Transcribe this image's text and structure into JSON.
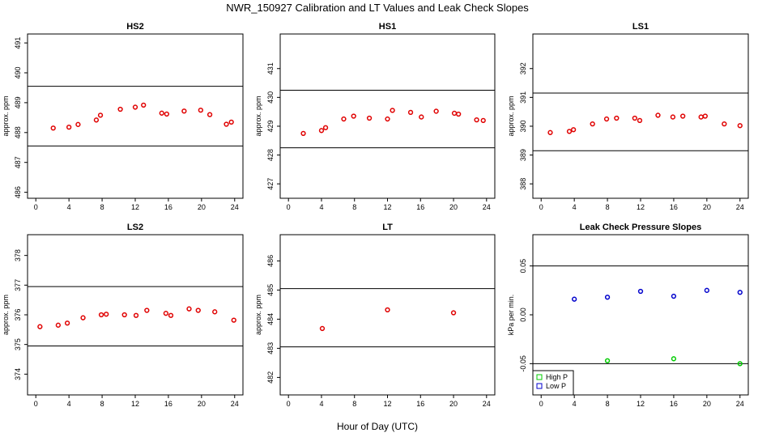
{
  "figure": {
    "title": "NWR_150927  Calibration and LT Values and Leak Check Slopes",
    "xlabel": "Hour of Day (UTC)"
  },
  "chart_data": [
    {
      "type": "scatter",
      "title": "HS2",
      "ylabel": "approx. ppm",
      "xlim": [
        -1,
        25
      ],
      "ylim": [
        485.8,
        491.3
      ],
      "xticks": [
        "0",
        "4",
        "8",
        "12",
        "16",
        "20",
        "24"
      ],
      "yticks": [
        "486",
        "487",
        "488",
        "489",
        "490",
        "491"
      ],
      "hlines": [
        489.55,
        487.55
      ],
      "series": [
        {
          "color": "#e00000",
          "marker": "circle",
          "x": [
            2.1,
            4.0,
            5.1,
            7.3,
            7.8,
            10.2,
            12.0,
            13.0,
            15.2,
            15.8,
            17.9,
            19.9,
            21.0,
            23.0,
            23.6
          ],
          "y": [
            488.15,
            488.18,
            488.27,
            488.42,
            488.58,
            488.78,
            488.85,
            488.92,
            488.65,
            488.62,
            488.72,
            488.75,
            488.6,
            488.28,
            488.35
          ]
        }
      ]
    },
    {
      "type": "scatter",
      "title": "HS1",
      "ylabel": "approx. ppm",
      "xlim": [
        -1,
        25
      ],
      "ylim": [
        426.5,
        432.2
      ],
      "xticks": [
        "0",
        "4",
        "8",
        "12",
        "16",
        "20",
        "24"
      ],
      "yticks": [
        "427",
        "428",
        "429",
        "430",
        "431"
      ],
      "hlines": [
        430.25,
        428.25
      ],
      "series": [
        {
          "color": "#e00000",
          "marker": "circle",
          "x": [
            1.8,
            4.0,
            4.5,
            6.7,
            7.9,
            9.8,
            12.0,
            12.6,
            14.8,
            16.1,
            17.9,
            20.1,
            20.6,
            22.8,
            23.6
          ],
          "y": [
            428.75,
            428.85,
            428.95,
            429.25,
            429.35,
            429.28,
            429.25,
            429.55,
            429.48,
            429.32,
            429.52,
            429.45,
            429.42,
            429.22,
            429.2
          ]
        }
      ]
    },
    {
      "type": "scatter",
      "title": "LS1",
      "ylabel": "approx. ppm",
      "xlim": [
        -1,
        25
      ],
      "ylim": [
        387.5,
        393.2
      ],
      "xticks": [
        "0",
        "4",
        "8",
        "12",
        "16",
        "20",
        "24"
      ],
      "yticks": [
        "388",
        "389",
        "390",
        "391",
        "392"
      ],
      "hlines": [
        391.15,
        389.15
      ],
      "series": [
        {
          "color": "#e00000",
          "marker": "circle",
          "x": [
            1.1,
            3.4,
            3.9,
            6.2,
            7.9,
            9.1,
            11.3,
            11.9,
            14.1,
            15.9,
            17.1,
            19.3,
            19.8,
            22.1,
            24.0
          ],
          "y": [
            389.78,
            389.82,
            389.88,
            390.08,
            390.25,
            390.28,
            390.28,
            390.2,
            390.38,
            390.32,
            390.35,
            390.32,
            390.35,
            390.08,
            390.02
          ]
        }
      ]
    },
    {
      "type": "scatter",
      "title": "LS2",
      "ylabel": "approx. ppm",
      "xlim": [
        -1,
        25
      ],
      "ylim": [
        373.3,
        378.7
      ],
      "xticks": [
        "0",
        "4",
        "8",
        "12",
        "16",
        "20",
        "24"
      ],
      "yticks": [
        "374",
        "375",
        "376",
        "377",
        "378"
      ],
      "hlines": [
        376.95,
        374.95
      ],
      "series": [
        {
          "color": "#e00000",
          "marker": "circle",
          "x": [
            0.5,
            2.7,
            3.8,
            5.7,
            7.9,
            8.5,
            10.7,
            12.1,
            13.4,
            15.7,
            16.3,
            18.5,
            19.6,
            21.6,
            23.9
          ],
          "y": [
            375.6,
            375.65,
            375.72,
            375.9,
            376.0,
            376.02,
            376.0,
            375.98,
            376.15,
            376.05,
            375.98,
            376.2,
            376.15,
            376.1,
            375.82
          ]
        }
      ]
    },
    {
      "type": "scatter",
      "title": "LT",
      "ylabel": "approx. ppm",
      "xlim": [
        -1,
        25
      ],
      "ylim": [
        481.4,
        486.9
      ],
      "xticks": [
        "0",
        "4",
        "8",
        "12",
        "16",
        "20",
        "24"
      ],
      "yticks": [
        "482",
        "483",
        "484",
        "485",
        "486"
      ],
      "hlines": [
        485.05,
        483.05
      ],
      "series": [
        {
          "color": "#e00000",
          "marker": "circle",
          "x": [
            4.1,
            12.0,
            20.0
          ],
          "y": [
            483.68,
            484.32,
            484.22
          ]
        }
      ]
    },
    {
      "type": "scatter",
      "title": "Leak Check Pressure Slopes",
      "ylabel": "kPa per min.",
      "xlim": [
        -1,
        25
      ],
      "ylim": [
        -0.082,
        0.082
      ],
      "xticks": [
        "0",
        "4",
        "8",
        "12",
        "16",
        "20",
        "24"
      ],
      "yticks": [
        "-0.05",
        "0.00",
        "0.05"
      ],
      "ytick_values": [
        -0.05,
        0.0,
        0.05
      ],
      "hlines": [
        0.05,
        -0.05
      ],
      "legend": {
        "position": "bottom-left"
      },
      "series": [
        {
          "name": "High P",
          "color": "#00cc00",
          "marker": "circle",
          "x": [
            8.0,
            16.0,
            24.0
          ],
          "y": [
            -0.047,
            -0.045,
            -0.05
          ]
        },
        {
          "name": "Low P",
          "color": "#0000cc",
          "marker": "circle",
          "x": [
            4.0,
            8.0,
            12.0,
            16.0,
            20.0,
            24.0
          ],
          "y": [
            0.016,
            0.018,
            0.024,
            0.019,
            0.025,
            0.023
          ]
        }
      ]
    }
  ]
}
